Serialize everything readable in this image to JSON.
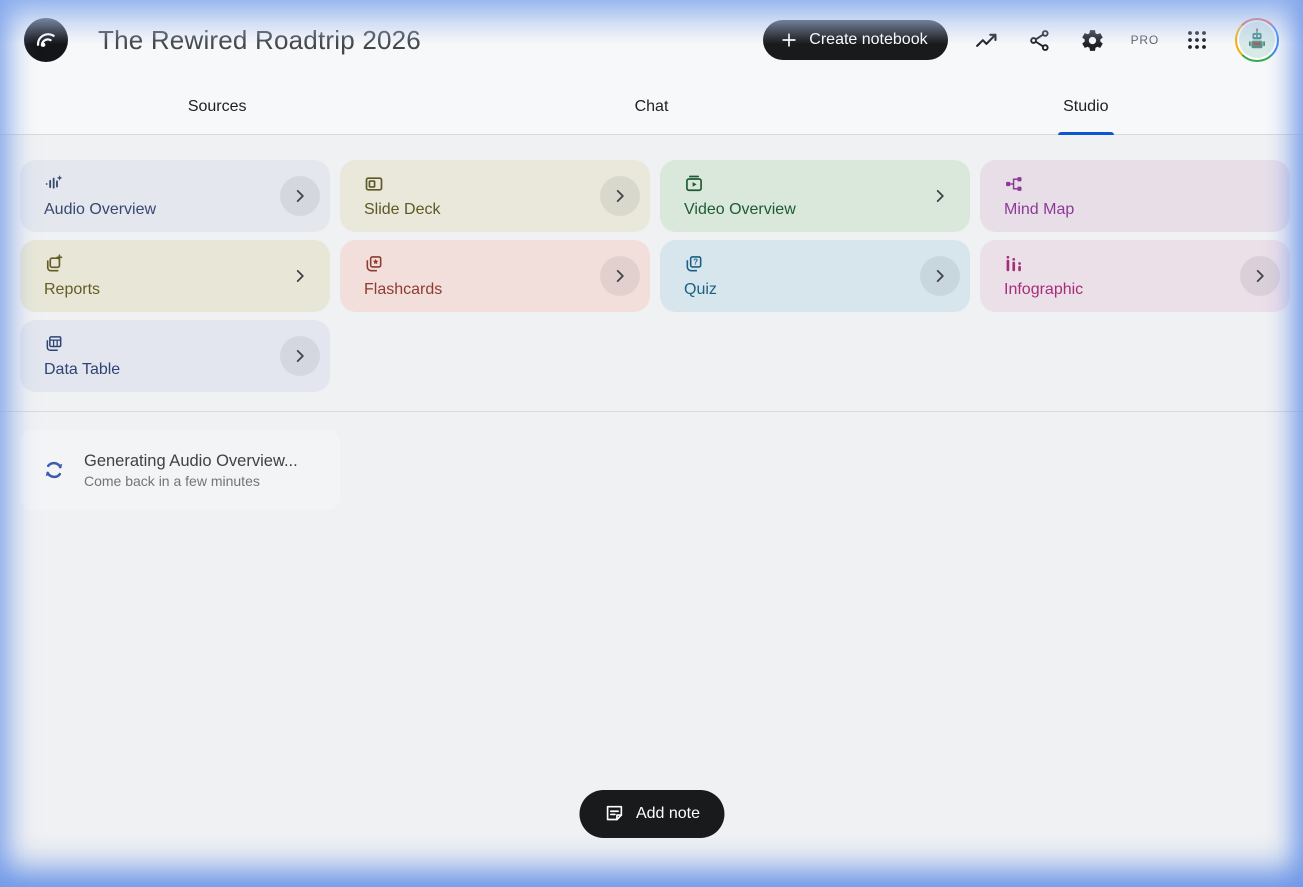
{
  "header": {
    "title": "The Rewired Roadtrip 2026",
    "create_notebook_label": "Create notebook",
    "pro_badge": "PRO",
    "icons": [
      "notebooklm-logo",
      "plus-icon",
      "analytics-icon",
      "share-icon",
      "settings-gear-icon",
      "apps-grid-icon",
      "avatar-robot"
    ]
  },
  "tabs": [
    {
      "label": "Sources",
      "active": false
    },
    {
      "label": "Chat",
      "active": false
    },
    {
      "label": "Studio",
      "active": true
    }
  ],
  "studio": {
    "cards": [
      {
        "label": "Audio Overview",
        "icon": "waveform-sparkle",
        "bg": "#e4e7ee",
        "fg": "#37496f",
        "chevron": "circle"
      },
      {
        "label": "Slide Deck",
        "icon": "presentation",
        "bg": "#e9e8da",
        "fg": "#5e5827",
        "chevron": "circle"
      },
      {
        "label": "Video Overview",
        "icon": "video-library",
        "bg": "#d9e8db",
        "fg": "#1d5b35",
        "chevron": "plain"
      },
      {
        "label": "Mind Map",
        "icon": "mind-map",
        "bg": "#e7dee8",
        "fg": "#8d3a97",
        "chevron": "none"
      },
      {
        "label": "Reports",
        "icon": "report-stack",
        "bg": "#e8e7d7",
        "fg": "#645c24",
        "chevron": "plain"
      },
      {
        "label": "Flashcards",
        "icon": "flashcards-star",
        "bg": "#f2dfdc",
        "fg": "#8e3b31",
        "chevron": "circle"
      },
      {
        "label": "Quiz",
        "icon": "quiz-cards",
        "bg": "#d6e6ec",
        "fg": "#1b6083",
        "chevron": "circle"
      },
      {
        "label": "Infographic",
        "icon": "bar-chart",
        "bg": "#ebdfe8",
        "fg": "#a52e79",
        "chevron": "circle"
      },
      {
        "label": "Data Table",
        "icon": "table",
        "bg": "#e3e6ee",
        "fg": "#2f4474",
        "chevron": "circle"
      }
    ],
    "generating": {
      "title": "Generating Audio Overview...",
      "subtitle": "Come back in a few minutes",
      "icon": "sync-icon"
    },
    "add_note_label": "Add note"
  },
  "colors": {
    "accent_blue": "#0b57d0",
    "glow_blue": "#7fa6ee",
    "button_black": "#191a1b",
    "page_bg": "#f0f1f3",
    "header_bg": "#f7f8f9"
  }
}
